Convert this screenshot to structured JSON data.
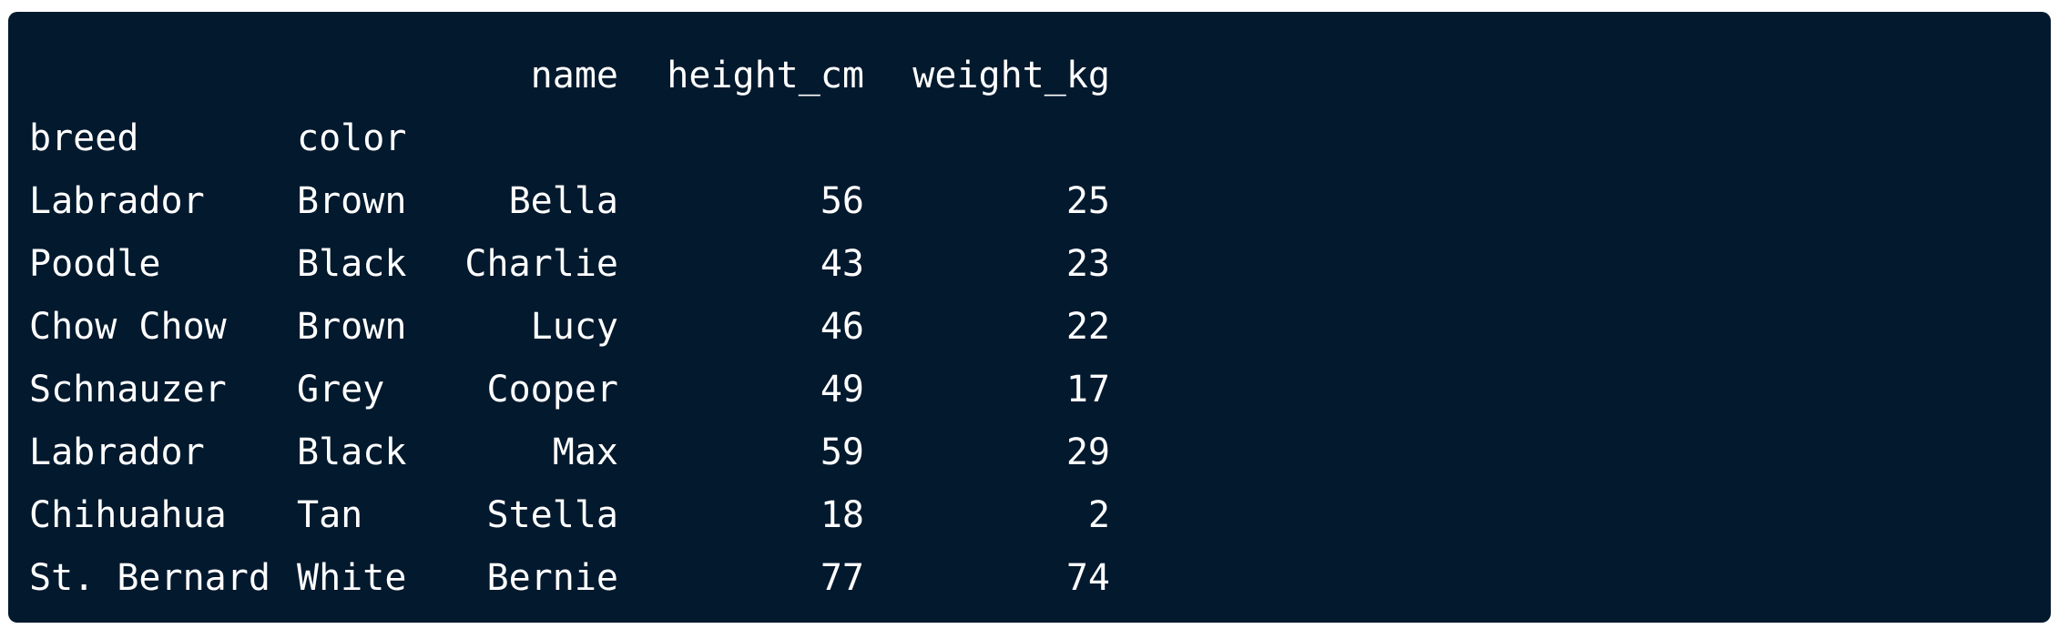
{
  "header": {
    "columns": [
      "name",
      "height_cm",
      "weight_kg"
    ],
    "index_names": [
      "breed",
      "color"
    ]
  },
  "rows": [
    {
      "breed": "Labrador",
      "color": "Brown",
      "name": "Bella",
      "height_cm": "56",
      "weight_kg": "25"
    },
    {
      "breed": "Poodle",
      "color": "Black",
      "name": "Charlie",
      "height_cm": "43",
      "weight_kg": "23"
    },
    {
      "breed": "Chow Chow",
      "color": "Brown",
      "name": "Lucy",
      "height_cm": "46",
      "weight_kg": "22"
    },
    {
      "breed": "Schnauzer",
      "color": "Grey",
      "name": "Cooper",
      "height_cm": "49",
      "weight_kg": "17"
    },
    {
      "breed": "Labrador",
      "color": "Black",
      "name": "Max",
      "height_cm": "59",
      "weight_kg": "29"
    },
    {
      "breed": "Chihuahua",
      "color": "Tan",
      "name": "Stella",
      "height_cm": "18",
      "weight_kg": "2"
    },
    {
      "breed": "St. Bernard",
      "color": "White",
      "name": "Bernie",
      "height_cm": "77",
      "weight_kg": "74"
    }
  ]
}
